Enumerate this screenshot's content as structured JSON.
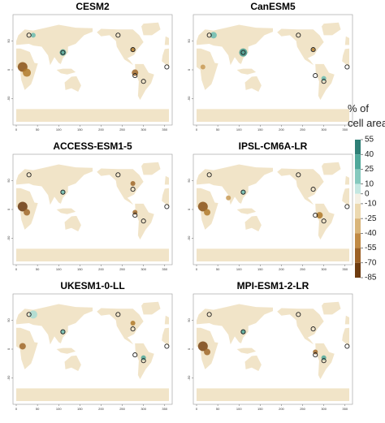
{
  "panels": [
    {
      "title": "CESM2"
    },
    {
      "title": "CanESM5"
    },
    {
      "title": "ACCESS-ESM1-5"
    },
    {
      "title": "IPSL-CM6A-LR"
    },
    {
      "title": "UKESM1-0-LL"
    },
    {
      "title": "MPI-ESM1-2-LR"
    }
  ],
  "x_ticks": [
    0,
    50,
    100,
    150,
    200,
    250,
    300,
    350
  ],
  "y_ticks": [
    50,
    0,
    -50
  ],
  "colorbar": {
    "title_line1": "% of",
    "title_line2": "cell area",
    "ticks": [
      55,
      40,
      25,
      10,
      0,
      -10,
      -25,
      -40,
      -55,
      -70,
      -85
    ]
  }
}
